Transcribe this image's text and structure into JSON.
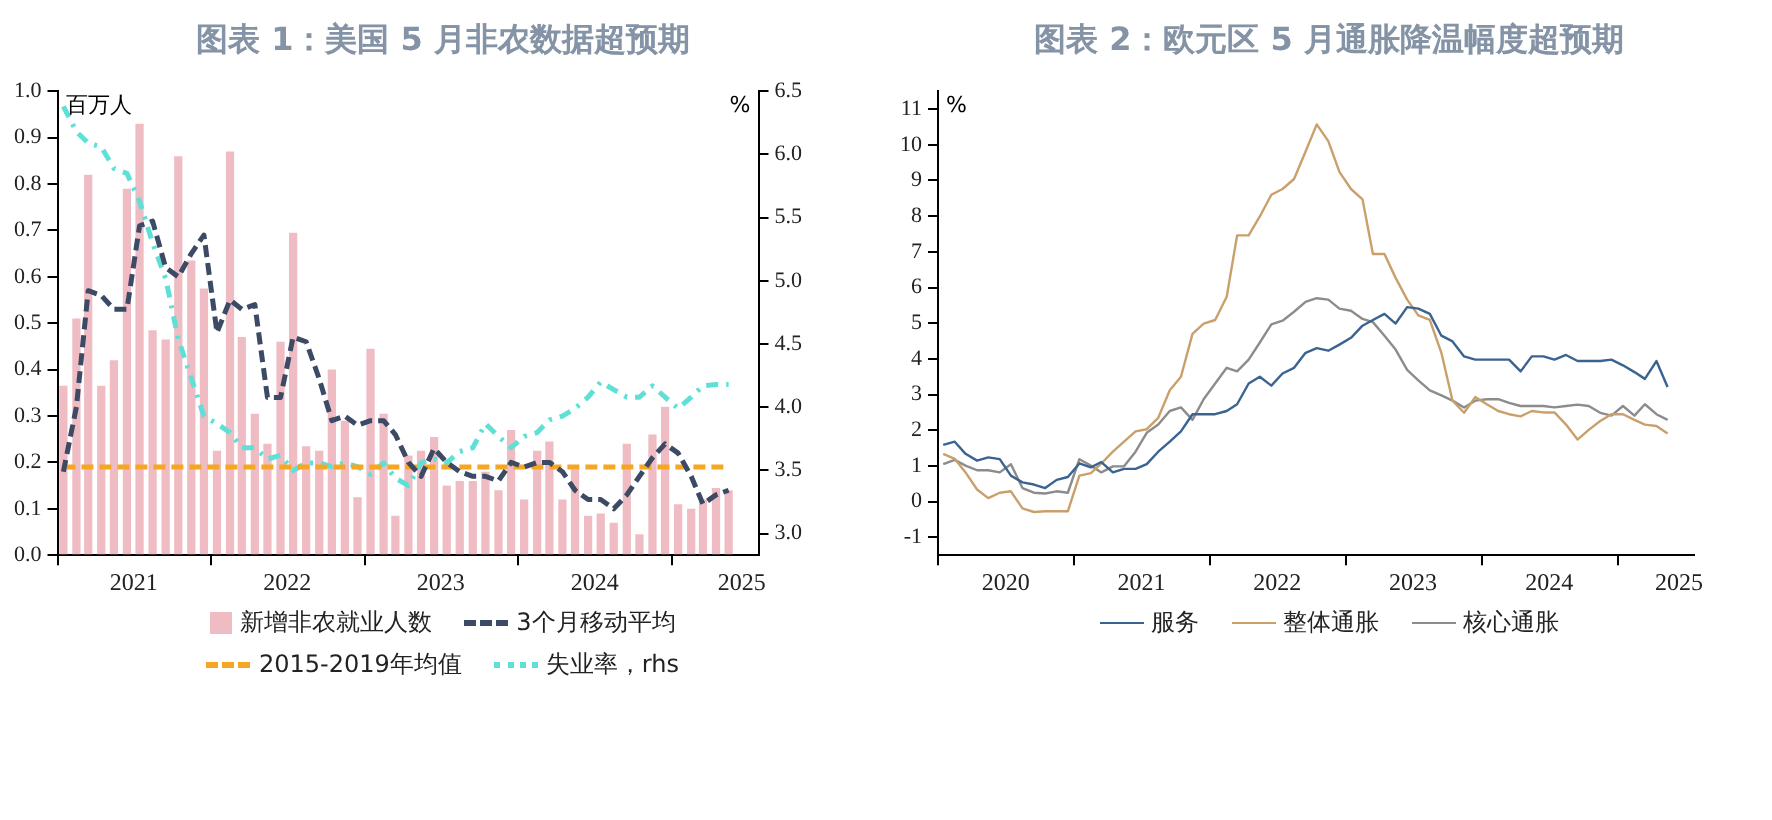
{
  "chart_data": [
    {
      "type": "bar",
      "title": "图表 1：美国 5 月非农数据超预期",
      "ylabel": "百万人",
      "y2label": "%",
      "legend": "bottom",
      "marker": "none",
      "x": [
        "2021-01-15",
        "2021-02-15",
        "2021-03-15",
        "2021-04-15",
        "2021-05-15",
        "2021-06-15",
        "2021-07-15",
        "2021-08-15",
        "2021-09-15",
        "2021-10-15",
        "2021-11-15",
        "2021-12-15",
        "2022-01-15",
        "2022-02-15",
        "2022-03-15",
        "2022-04-15",
        "2022-05-15",
        "2022-06-15",
        "2022-07-15",
        "2022-08-15",
        "2022-09-15",
        "2022-10-15",
        "2022-11-15",
        "2022-12-15",
        "2023-01-15",
        "2023-02-15",
        "2023-03-15",
        "2023-04-15",
        "2023-05-15",
        "2023-06-15",
        "2023-07-15",
        "2023-08-15",
        "2023-09-15",
        "2023-10-15",
        "2023-11-15",
        "2023-12-15",
        "2024-01-15",
        "2024-02-15",
        "2024-03-15",
        "2024-04-15",
        "2024-05-15",
        "2024-06-15",
        "2024-07-15",
        "2024-08-15",
        "2024-09-15",
        "2024-10-15",
        "2024-11-15",
        "2024-12-15",
        "2025-01-15",
        "2025-02-15",
        "2025-03-15",
        "2025-04-15",
        "2025-05-15"
      ],
      "series": [
        {
          "name": "新增非农就业人数",
          "type": "bar",
          "color": "#efbcc3",
          "values": [
            0.365,
            0.51,
            0.82,
            0.365,
            0.42,
            0.79,
            0.93,
            0.485,
            0.465,
            0.86,
            0.635,
            0.575,
            0.225,
            0.87,
            0.47,
            0.305,
            0.24,
            0.46,
            0.695,
            0.235,
            0.225,
            0.4,
            0.29,
            0.125,
            0.445,
            0.305,
            0.085,
            0.215,
            0.225,
            0.255,
            0.15,
            0.16,
            0.16,
            0.18,
            0.14,
            0.27,
            0.12,
            0.225,
            0.245,
            0.12,
            0.185,
            0.085,
            0.09,
            0.07,
            0.24,
            0.045,
            0.26,
            0.32,
            0.11,
            0.1,
            0.12,
            0.145,
            0.14
          ]
        },
        {
          "name": "3个月移动平均",
          "type": "line",
          "line_style": "dashed",
          "color": "#3c4a66",
          "values": [
            0.18,
            0.32,
            0.57,
            0.56,
            0.53,
            0.53,
            0.71,
            0.72,
            0.62,
            0.6,
            0.65,
            0.69,
            0.48,
            0.55,
            0.53,
            0.54,
            0.34,
            0.34,
            0.47,
            0.46,
            0.38,
            0.29,
            0.3,
            0.28,
            0.29,
            0.29,
            0.26,
            0.2,
            0.17,
            0.23,
            0.2,
            0.18,
            0.17,
            0.17,
            0.16,
            0.2,
            0.19,
            0.2,
            0.2,
            0.18,
            0.14,
            0.12,
            0.12,
            0.1,
            0.13,
            0.17,
            0.21,
            0.24,
            0.22,
            0.17,
            0.11,
            0.13,
            0.14
          ]
        },
        {
          "name": "2015-2019年均值",
          "type": "line",
          "line_style": "dashed",
          "color": "#f5a623",
          "values": [
            0.19,
            0.19,
            0.19,
            0.19,
            0.19,
            0.19,
            0.19,
            0.19,
            0.19,
            0.19,
            0.19,
            0.19,
            0.19,
            0.19,
            0.19,
            0.19,
            0.19,
            0.19,
            0.19,
            0.19,
            0.19,
            0.19,
            0.19,
            0.19,
            0.19,
            0.19,
            0.19,
            0.19,
            0.19,
            0.19,
            0.19,
            0.19,
            0.19,
            0.19,
            0.19,
            0.19,
            0.19,
            0.19,
            0.19,
            0.19,
            0.19,
            0.19,
            0.19,
            0.19,
            0.19,
            0.19,
            0.19,
            0.19,
            0.19,
            0.19,
            0.19,
            0.19,
            0.19
          ]
        },
        {
          "name": "失业率，rhs",
          "type": "line",
          "line_style": "dotted",
          "axis": "y2",
          "color": "#5fe0d6",
          "values": [
            6.38,
            6.18,
            6.09,
            6.06,
            5.89,
            5.85,
            5.63,
            5.3,
            5.02,
            4.54,
            4.23,
            3.93,
            3.87,
            3.8,
            3.68,
            3.68,
            3.59,
            3.62,
            3.5,
            3.56,
            3.56,
            3.53,
            3.56,
            3.53,
            3.47,
            3.56,
            3.44,
            3.38,
            3.56,
            3.59,
            3.56,
            3.65,
            3.68,
            3.87,
            3.77,
            3.68,
            3.77,
            3.8,
            3.9,
            3.93,
            3.99,
            4.08,
            4.2,
            4.14,
            4.08,
            4.08,
            4.17,
            4.08,
            3.99,
            4.08,
            4.17,
            4.18,
            4.18
          ]
        }
      ],
      "xlim": [
        "2021-01-01",
        "2025-07-25"
      ],
      "xticks": [
        {
          "value": "2021-01-01",
          "label": null
        },
        {
          "value": "2022-01-01",
          "label": null
        },
        {
          "value": "2023-01-01",
          "label": null
        },
        {
          "value": "2024-01-01",
          "label": null
        },
        {
          "value": "2025-01-01",
          "label": null
        },
        {
          "value": "2021-07-01",
          "label": "2021"
        },
        {
          "value": "2022-07-01",
          "label": "2022"
        },
        {
          "value": "2023-07-01",
          "label": "2023"
        },
        {
          "value": "2024-07-01",
          "label": "2024"
        },
        {
          "value": "2025-06-15",
          "label": "2025"
        }
      ],
      "ylim": [
        0,
        1
      ],
      "yticks": [
        {
          "value": 0,
          "label": "0.0"
        },
        0.1,
        0.2,
        0.3,
        0.4,
        0.5,
        0.6,
        0.7,
        0.8,
        0.9,
        {
          "value": 1,
          "label": "1.0"
        }
      ],
      "y2lim": [
        2.83,
        6.5
      ],
      "y2ticks": [
        {
          "value": 3,
          "label": "3.0"
        },
        3.5,
        {
          "value": 4,
          "label": "4.0"
        },
        4.5,
        {
          "value": 5,
          "label": "5.0"
        },
        5.5,
        {
          "value": 6,
          "label": "6.0"
        },
        6.5
      ]
    },
    {
      "type": "line",
      "title": "图表 2：欧元区 5 月通胀降温幅度超预期",
      "ylabel": "%",
      "legend": "bottom",
      "marker": "none",
      "line_style": "solid",
      "x": [
        "2020-01-15",
        "2020-02-15",
        "2020-03-15",
        "2020-04-15",
        "2020-05-15",
        "2020-06-15",
        "2020-07-15",
        "2020-08-15",
        "2020-09-15",
        "2020-10-15",
        "2020-11-15",
        "2020-12-15",
        "2021-01-15",
        "2021-02-15",
        "2021-03-15",
        "2021-04-15",
        "2021-05-15",
        "2021-06-15",
        "2021-07-15",
        "2021-08-15",
        "2021-09-15",
        "2021-10-15",
        "2021-11-15",
        "2021-12-15",
        "2022-01-15",
        "2022-02-15",
        "2022-03-15",
        "2022-04-15",
        "2022-05-15",
        "2022-06-15",
        "2022-07-15",
        "2022-08-15",
        "2022-09-15",
        "2022-10-15",
        "2022-11-15",
        "2022-12-15",
        "2023-01-15",
        "2023-02-15",
        "2023-03-15",
        "2023-04-15",
        "2023-05-15",
        "2023-06-15",
        "2023-07-15",
        "2023-08-15",
        "2023-09-15",
        "2023-10-15",
        "2023-11-15",
        "2023-12-15",
        "2024-01-15",
        "2024-02-15",
        "2024-03-15",
        "2024-04-15",
        "2024-05-15",
        "2024-06-15",
        "2024-07-15",
        "2024-08-15",
        "2024-09-15",
        "2024-10-15",
        "2024-11-15",
        "2024-12-15",
        "2025-01-15",
        "2025-02-15",
        "2025-03-15",
        "2025-04-15",
        "2025-05-15"
      ],
      "series": [
        {
          "name": "服务",
          "color": "#3a6391",
          "values": [
            1.59,
            1.68,
            1.34,
            1.15,
            1.24,
            1.19,
            0.73,
            0.54,
            0.48,
            0.38,
            0.61,
            0.69,
            1.07,
            0.96,
            1.11,
            0.82,
            0.92,
            0.92,
            1.05,
            1.4,
            1.68,
            1.97,
            2.45,
            2.45,
            2.45,
            2.54,
            2.73,
            3.31,
            3.5,
            3.25,
            3.59,
            3.75,
            4.17,
            4.3,
            4.23,
            4.4,
            4.59,
            4.93,
            5.09,
            5.26,
            4.99,
            5.45,
            5.41,
            5.26,
            4.65,
            4.49,
            4.07,
            3.98,
            3.98,
            3.98,
            3.98,
            3.65,
            4.07,
            4.07,
            3.98,
            4.11,
            3.94,
            3.94,
            3.94,
            3.98,
            3.82,
            3.63,
            3.44,
            3.94,
            3.21
          ]
        },
        {
          "name": "整体通胀",
          "color": "#c9a06c",
          "values": [
            1.34,
            1.2,
            0.82,
            0.34,
            0.1,
            0.25,
            0.29,
            -0.19,
            -0.29,
            -0.27,
            -0.27,
            -0.27,
            0.73,
            0.8,
            1.07,
            1.4,
            1.68,
            1.97,
            2.03,
            2.35,
            3.12,
            3.5,
            4.7,
            4.99,
            5.09,
            5.74,
            7.46,
            7.46,
            7.99,
            8.6,
            8.76,
            9.04,
            9.81,
            10.57,
            10.1,
            9.24,
            8.76,
            8.47,
            6.94,
            6.94,
            6.27,
            5.66,
            5.22,
            5.09,
            4.17,
            2.83,
            2.49,
            2.93,
            2.73,
            2.54,
            2.45,
            2.39,
            2.54,
            2.5,
            2.5,
            2.16,
            1.74,
            2.01,
            2.26,
            2.45,
            2.45,
            2.29,
            2.16,
            2.12,
            1.91
          ]
        },
        {
          "name": "核心通胀",
          "color": "#8c8c8c",
          "values": [
            1.05,
            1.17,
            1.01,
            0.88,
            0.88,
            0.82,
            1.05,
            0.38,
            0.25,
            0.23,
            0.29,
            0.25,
            1.19,
            1.01,
            0.82,
            0.99,
            0.99,
            1.4,
            1.93,
            2.16,
            2.54,
            2.64,
            2.29,
            2.87,
            3.31,
            3.75,
            3.65,
            3.98,
            4.46,
            4.97,
            5.07,
            5.32,
            5.6,
            5.7,
            5.66,
            5.41,
            5.35,
            5.12,
            5.03,
            4.65,
            4.26,
            3.69,
            3.4,
            3.12,
            2.98,
            2.83,
            2.64,
            2.83,
            2.87,
            2.87,
            2.77,
            2.68,
            2.68,
            2.68,
            2.64,
            2.68,
            2.72,
            2.68,
            2.49,
            2.41,
            2.68,
            2.41,
            2.73,
            2.45,
            2.29
          ]
        }
      ],
      "xlim": [
        "2020-01-01",
        "2025-07-25"
      ],
      "xticks": [
        {
          "value": "2020-01-01",
          "label": null
        },
        {
          "value": "2021-01-01",
          "label": null
        },
        {
          "value": "2022-01-01",
          "label": null
        },
        {
          "value": "2023-01-01",
          "label": null
        },
        {
          "value": "2024-01-01",
          "label": null
        },
        {
          "value": "2025-01-01",
          "label": null
        },
        {
          "value": "2020-07-01",
          "label": "2020"
        },
        {
          "value": "2021-07-01",
          "label": "2021"
        },
        {
          "value": "2022-07-01",
          "label": "2022"
        },
        {
          "value": "2023-07-01",
          "label": "2023"
        },
        {
          "value": "2024-07-01",
          "label": "2024"
        },
        {
          "value": "2025-06-15",
          "label": "2025"
        }
      ],
      "ylim": [
        -1.5,
        11.5
      ],
      "yticks": [
        -1,
        0,
        1,
        2,
        3,
        4,
        5,
        6,
        7,
        8,
        9,
        10,
        11
      ]
    }
  ]
}
